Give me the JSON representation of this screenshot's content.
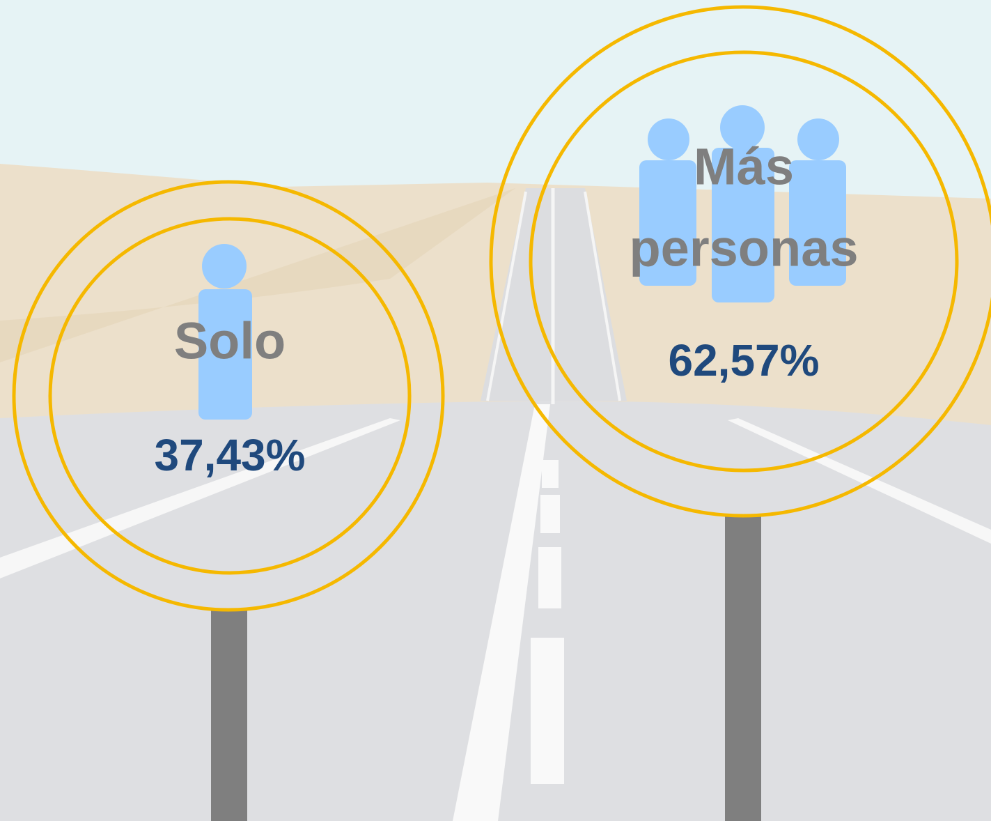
{
  "items": [
    {
      "label": [
        "Solo"
      ],
      "percent": "37,43%"
    },
    {
      "label": [
        "Más",
        "personas"
      ],
      "percent": "62,57%"
    }
  ]
}
